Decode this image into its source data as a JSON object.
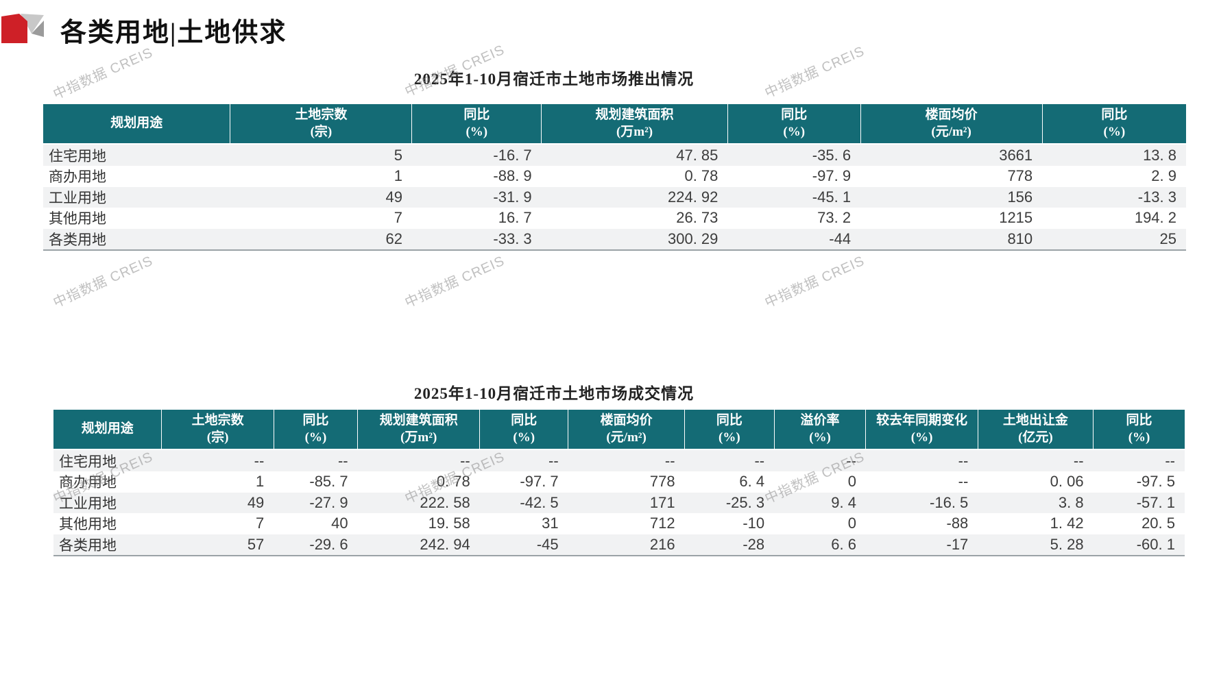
{
  "page": {
    "title": "各类用地|土地供求",
    "watermark_text": "中指数据 CREIS"
  },
  "theme": {
    "header_bg": "#146B75",
    "logo_red": "#CE2027",
    "logo_gray_light": "#C8C8C8",
    "logo_gray_mid": "#9B9B9B",
    "stripe_bg": "#F1F2F3",
    "watermark_color": "rgba(140,140,140,0.55)"
  },
  "supply_table": {
    "title": "2025年1-10月宿迁市土地市场推出情况",
    "columns": [
      {
        "line1": "规划用途",
        "line2": ""
      },
      {
        "line1": "土地宗数",
        "line2": "(宗)"
      },
      {
        "line1": "同比",
        "line2": "(%)"
      },
      {
        "line1": "规划建筑面积",
        "line2": "(万m²)"
      },
      {
        "line1": "同比",
        "line2": "(%)"
      },
      {
        "line1": "楼面均价",
        "line2": "(元/m²)"
      },
      {
        "line1": "同比",
        "line2": "(%)"
      }
    ],
    "rows": [
      [
        "住宅用地",
        "5",
        "-16.7",
        "47.85",
        "-35.6",
        "3661",
        "13.8"
      ],
      [
        "商办用地",
        "1",
        "-88.9",
        "0.78",
        "-97.9",
        "778",
        "2.9"
      ],
      [
        "工业用地",
        "49",
        "-31.9",
        "224.92",
        "-45.1",
        "156",
        "-13.3"
      ],
      [
        "其他用地",
        "7",
        "16.7",
        "26.73",
        "73.2",
        "1215",
        "194.2"
      ],
      [
        "各类用地",
        "62",
        "-33.3",
        "300.29",
        "-44",
        "810",
        "25"
      ]
    ]
  },
  "deal_table": {
    "title": "2025年1-10月宿迁市土地市场成交情况",
    "columns": [
      {
        "line1": "规划用途",
        "line2": ""
      },
      {
        "line1": "土地宗数",
        "line2": "(宗)"
      },
      {
        "line1": "同比",
        "line2": "(%)"
      },
      {
        "line1": "规划建筑面积",
        "line2": "(万m²)"
      },
      {
        "line1": "同比",
        "line2": "(%)"
      },
      {
        "line1": "楼面均价",
        "line2": "(元/m²)"
      },
      {
        "line1": "同比",
        "line2": "(%)"
      },
      {
        "line1": "溢价率",
        "line2": "(%)"
      },
      {
        "line1": "较去年同期变化",
        "line2": "(%)"
      },
      {
        "line1": "土地出让金",
        "line2": "(亿元)"
      },
      {
        "line1": "同比",
        "line2": "(%)"
      }
    ],
    "rows": [
      [
        "住宅用地",
        "--",
        "--",
        "--",
        "--",
        "--",
        "--",
        "--",
        "--",
        "--",
        "--"
      ],
      [
        "商办用地",
        "1",
        "-85.7",
        "0.78",
        "-97.7",
        "778",
        "6.4",
        "0",
        "--",
        "0.06",
        "-97.5"
      ],
      [
        "工业用地",
        "49",
        "-27.9",
        "222.58",
        "-42.5",
        "171",
        "-25.3",
        "9.4",
        "-16.5",
        "3.8",
        "-57.1"
      ],
      [
        "其他用地",
        "7",
        "40",
        "19.58",
        "31",
        "712",
        "-10",
        "0",
        "-88",
        "1.42",
        "20.5"
      ],
      [
        "各类用地",
        "57",
        "-29.6",
        "242.94",
        "-45",
        "216",
        "-28",
        "6.6",
        "-17",
        "5.28",
        "-60.1"
      ]
    ]
  }
}
